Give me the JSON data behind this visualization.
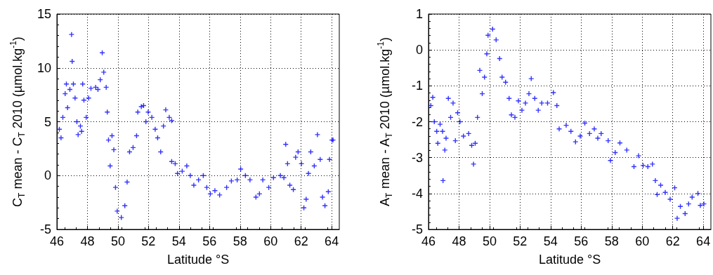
{
  "chart_data": [
    {
      "type": "scatter",
      "xlabel": "Latitude °S",
      "ylabel": "C$_{T}$ mean - C$_{T}$ 2010 (µmol.kg$^{-1}$)",
      "color": "#0000ff",
      "marker": "cross",
      "grid": true,
      "xlim": [
        46,
        64.5
      ],
      "xticks": [
        46,
        48,
        50,
        52,
        54,
        56,
        58,
        60,
        62,
        64
      ],
      "ylim": [
        -5,
        15
      ],
      "yticks": [
        -5,
        0,
        5,
        10,
        15
      ],
      "x": [
        46.16,
        46.27,
        46.39,
        46.54,
        46.62,
        46.7,
        46.85,
        46.96,
        47.0,
        47.08,
        47.19,
        47.31,
        47.39,
        47.54,
        47.62,
        47.69,
        47.77,
        47.92,
        48.08,
        48.23,
        48.54,
        48.69,
        48.84,
        48.97,
        49.07,
        49.23,
        49.3,
        49.38,
        49.49,
        49.61,
        49.73,
        49.84,
        49.95,
        50.22,
        50.45,
        50.6,
        50.76,
        50.99,
        51.22,
        51.3,
        51.53,
        51.68,
        51.83,
        51.98,
        52.22,
        52.44,
        52.6,
        52.8,
        52.98,
        53.13,
        53.36,
        53.52,
        53.52,
        53.75,
        53.9,
        54.21,
        54.51,
        54.74,
        54.97,
        55.28,
        55.59,
        55.82,
        56.05,
        56.35,
        56.66,
        57.12,
        57.43,
        57.81,
        58.04,
        58.35,
        58.65,
        59.04,
        59.27,
        59.49,
        59.88,
        60.19,
        60.64,
        60.87,
        60.99,
        61.11,
        61.26,
        61.49,
        61.64,
        61.8,
        62.02,
        62.18,
        62.33,
        62.48,
        62.63,
        62.86,
        63.07,
        63.25,
        63.4,
        63.56,
        63.78,
        63.86,
        64.02,
        64.09
      ],
      "values": [
        4.3,
        3.5,
        5.4,
        7.6,
        8.5,
        6.3,
        8.0,
        13.1,
        10.6,
        8.5,
        7.2,
        5.0,
        3.8,
        4.6,
        4.1,
        8.5,
        7.0,
        5.4,
        7.2,
        8.1,
        8.2,
        8.0,
        8.9,
        11.4,
        9.6,
        8.2,
        5.9,
        3.3,
        0.9,
        3.7,
        2.4,
        -1.1,
        -3.3,
        -3.9,
        -2.8,
        -0.6,
        2.2,
        2.6,
        3.7,
        5.9,
        6.4,
        6.5,
        5.0,
        5.9,
        5.4,
        4.3,
        3.5,
        2.2,
        4.6,
        6.1,
        5.4,
        5.1,
        1.3,
        1.1,
        0.2,
        0.4,
        0.9,
        0.0,
        -0.9,
        -0.4,
        0.0,
        -1.1,
        -1.7,
        -1.4,
        -1.8,
        -1.1,
        -0.5,
        -0.4,
        0.6,
        0.0,
        -0.4,
        -2.0,
        -1.7,
        -0.4,
        -1.1,
        -0.2,
        0.0,
        -0.2,
        2.9,
        1.1,
        -0.9,
        -1.3,
        1.7,
        2.2,
        1.1,
        -3.0,
        -2.2,
        0.2,
        2.2,
        0.9,
        3.8,
        1.5,
        -2.0,
        -2.8,
        -1.5,
        1.5,
        3.3,
        3.3
      ]
    },
    {
      "type": "scatter",
      "xlabel": "Latitude °S",
      "ylabel": "A$_{T}$ mean - A$_{T}$ 2010 (µmol.kg$^{-1}$)",
      "color": "#0000ff",
      "marker": "cross",
      "grid": true,
      "xlim": [
        46,
        64.5
      ],
      "xticks": [
        46,
        48,
        50,
        52,
        54,
        56,
        58,
        60,
        62,
        64
      ],
      "ylim": [
        -5,
        1
      ],
      "yticks": [
        -5,
        -4,
        -3,
        -2,
        -1,
        0,
        1
      ],
      "x": [
        46.15,
        46.28,
        46.38,
        46.54,
        46.61,
        46.76,
        46.92,
        46.95,
        47.07,
        47.15,
        47.3,
        47.45,
        47.61,
        47.76,
        47.91,
        48.06,
        48.29,
        48.63,
        48.83,
        48.95,
        49.06,
        49.21,
        49.36,
        49.52,
        49.67,
        49.82,
        49.9,
        50.2,
        50.43,
        50.66,
        50.82,
        51.05,
        51.28,
        51.43,
        51.66,
        51.89,
        52.12,
        52.35,
        52.58,
        52.73,
        52.96,
        53.19,
        53.42,
        53.8,
        54.18,
        54.41,
        54.56,
        55.02,
        55.33,
        55.63,
        55.94,
        56.24,
        56.55,
        56.86,
        57.09,
        57.31,
        57.77,
        57.92,
        58.23,
        58.54,
        58.99,
        59.46,
        59.76,
        60.06,
        60.37,
        60.67,
        60.86,
        60.98,
        61.21,
        61.51,
        61.83,
        62.13,
        62.29,
        62.5,
        62.81,
        63.04,
        63.27,
        63.65,
        63.81,
        64.04
      ],
      "values": [
        -1.55,
        -1.32,
        -2.0,
        -2.27,
        -2.6,
        -2.07,
        -2.27,
        -3.64,
        -2.79,
        -2.46,
        -1.35,
        -1.88,
        -1.48,
        -2.53,
        -1.75,
        -2.0,
        -2.4,
        -2.33,
        -2.66,
        -3.18,
        -2.6,
        -1.88,
        -0.57,
        -1.22,
        -0.76,
        -0.11,
        0.41,
        0.58,
        0.28,
        -0.24,
        -0.76,
        -0.9,
        -1.35,
        -1.81,
        -1.88,
        -1.42,
        -1.68,
        -1.48,
        -1.22,
        -0.8,
        -1.35,
        -1.68,
        -1.48,
        -1.48,
        -1.19,
        -1.55,
        -2.2,
        -2.1,
        -2.27,
        -2.56,
        -2.4,
        -2.04,
        -2.33,
        -2.2,
        -2.46,
        -2.33,
        -2.53,
        -3.08,
        -2.86,
        -2.59,
        -2.79,
        -3.25,
        -2.95,
        -3.22,
        -3.25,
        -3.18,
        -3.64,
        -4.03,
        -3.77,
        -3.97,
        -4.16,
        -3.84,
        -4.69,
        -4.36,
        -4.56,
        -4.29,
        -4.1,
        -4.0,
        -4.33,
        -4.29
      ]
    }
  ]
}
